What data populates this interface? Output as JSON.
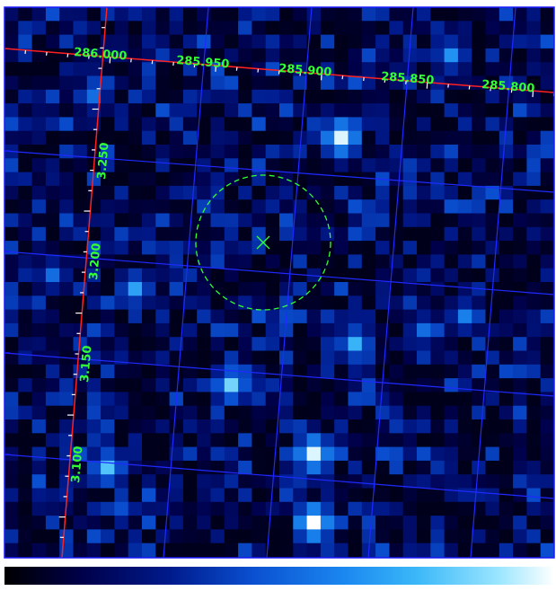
{
  "image": {
    "colormap": [
      "#000000",
      "#00004a",
      "#001a8c",
      "#0a4fd0",
      "#1b88f0",
      "#3bb8f8",
      "#9be6ff",
      "#ffffff"
    ]
  },
  "axes": {
    "ra_labels": [
      "286.000",
      "285.950",
      "285.900",
      "285.850",
      "285.800"
    ],
    "dec_labels": [
      "3.250",
      "3.200",
      "3.150",
      "3.100"
    ]
  },
  "region": {
    "shape": "circle",
    "marker": "x",
    "color": "#33ff33"
  },
  "colors": {
    "grid": "#1f2aff",
    "axis": "#ff2020",
    "label": "#33ff33",
    "frame": "#1a1aff"
  }
}
